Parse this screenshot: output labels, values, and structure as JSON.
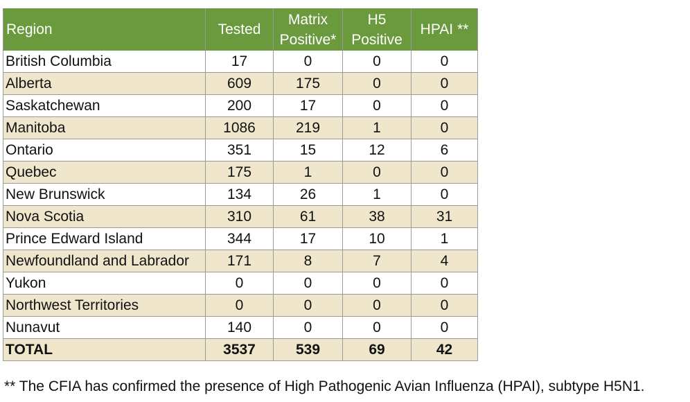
{
  "table": {
    "header": [
      "Region",
      "Tested",
      "Matrix Positive*",
      "H5 Positive",
      "HPAI **"
    ],
    "rows": [
      [
        "British Columbia",
        17,
        0,
        0,
        0
      ],
      [
        "Alberta",
        609,
        175,
        0,
        0
      ],
      [
        "Saskatchewan",
        200,
        17,
        0,
        0
      ],
      [
        "Manitoba",
        1086,
        219,
        1,
        0
      ],
      [
        "Ontario",
        351,
        15,
        12,
        6
      ],
      [
        "Quebec",
        175,
        1,
        0,
        0
      ],
      [
        "New Brunswick",
        134,
        26,
        1,
        0
      ],
      [
        "Nova Scotia",
        310,
        61,
        38,
        31
      ],
      [
        "Prince Edward Island",
        344,
        17,
        10,
        1
      ],
      [
        "Newfoundland and Labrador",
        171,
        8,
        7,
        4
      ],
      [
        "Yukon",
        0,
        0,
        0,
        0
      ],
      [
        "Northwest Territories",
        0,
        0,
        0,
        0
      ],
      [
        "Nunavut",
        140,
        0,
        0,
        0
      ]
    ],
    "total": [
      "TOTAL",
      3537,
      539,
      69,
      42
    ]
  },
  "footnote": "** The CFIA has confirmed the presence of High Pathogenic Avian Influenza (HPAI), subtype H5N1."
}
